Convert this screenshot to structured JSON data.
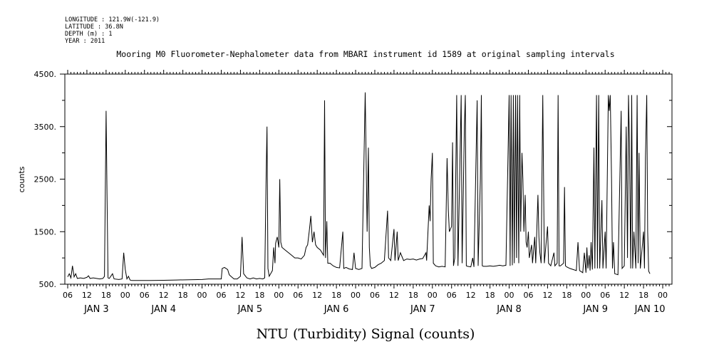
{
  "header": {
    "meta_lines": [
      "LONGITUDE : 121.9W(-121.9)",
      "LATITUDE : 36.8N",
      "DEPTH (m) : 1",
      "YEAR : 2011"
    ]
  },
  "chart_data": {
    "type": "line",
    "title": "Mooring M0 Fluorometer-Nephalometer data from MBARI instrument id 1589 at original sampling intervals",
    "xlabel": "NTU (Turbidity) Signal (counts)",
    "ylabel": "counts",
    "xlim_hours": [
      0,
      188
    ],
    "ylim": [
      500,
      4500
    ],
    "yticks": [
      500,
      1500,
      2500,
      3500,
      4500
    ],
    "ytick_labels": [
      "500.",
      "1500.",
      "2500.",
      "3500.",
      "4500."
    ],
    "xticks": [
      {
        "h": 0,
        "label": "06"
      },
      {
        "h": 6,
        "label": "12"
      },
      {
        "h": 12,
        "label": "18"
      },
      {
        "h": 18,
        "label": "00"
      },
      {
        "h": 24,
        "label": "06"
      },
      {
        "h": 30,
        "label": "12"
      },
      {
        "h": 36,
        "label": "18"
      },
      {
        "h": 42,
        "label": "00"
      },
      {
        "h": 48,
        "label": "06"
      },
      {
        "h": 54,
        "label": "12"
      },
      {
        "h": 60,
        "label": "18"
      },
      {
        "h": 66,
        "label": "00"
      },
      {
        "h": 72,
        "label": "06"
      },
      {
        "h": 78,
        "label": "12"
      },
      {
        "h": 84,
        "label": "18"
      },
      {
        "h": 90,
        "label": "00"
      },
      {
        "h": 96,
        "label": "06"
      },
      {
        "h": 102,
        "label": "12"
      },
      {
        "h": 108,
        "label": "18"
      },
      {
        "h": 114,
        "label": "00"
      },
      {
        "h": 120,
        "label": "06"
      },
      {
        "h": 126,
        "label": "12"
      },
      {
        "h": 132,
        "label": "18"
      },
      {
        "h": 138,
        "label": "00"
      },
      {
        "h": 144,
        "label": "06"
      },
      {
        "h": 150,
        "label": "12"
      },
      {
        "h": 156,
        "label": "18"
      },
      {
        "h": 162,
        "label": "00"
      },
      {
        "h": 168,
        "label": "06"
      },
      {
        "h": 174,
        "label": "12"
      },
      {
        "h": 180,
        "label": "18"
      },
      {
        "h": 186,
        "label": "00"
      }
    ],
    "day_labels": [
      {
        "h": 9,
        "label": "JAN  3"
      },
      {
        "h": 30,
        "label": "JAN  4"
      },
      {
        "h": 57,
        "label": "JAN  5"
      },
      {
        "h": 84,
        "label": "JAN  6"
      },
      {
        "h": 111,
        "label": "JAN  7"
      },
      {
        "h": 138,
        "label": "JAN  8"
      },
      {
        "h": 165,
        "label": "JAN  9"
      },
      {
        "h": 182,
        "label": "JAN 10"
      }
    ],
    "series": [
      {
        "points": [
          [
            0,
            640
          ],
          [
            0.5,
            700
          ],
          [
            1,
            620
          ],
          [
            1.5,
            850
          ],
          [
            2,
            640
          ],
          [
            2.5,
            700
          ],
          [
            3,
            610
          ],
          [
            4,
            620
          ],
          [
            5,
            610
          ],
          [
            6,
            630
          ],
          [
            6.5,
            660
          ],
          [
            7,
            610
          ],
          [
            8,
            620
          ],
          [
            9,
            610
          ],
          [
            10,
            600
          ],
          [
            11,
            610
          ],
          [
            11.5,
            650
          ],
          [
            12,
            3800
          ],
          [
            12.3,
            2200
          ],
          [
            12.6,
            620
          ],
          [
            13,
            610
          ],
          [
            14,
            700
          ],
          [
            14.5,
            600
          ],
          [
            16,
            590
          ],
          [
            17,
            600
          ],
          [
            17.5,
            1100
          ],
          [
            18,
            780
          ],
          [
            18.5,
            600
          ],
          [
            19,
            650
          ],
          [
            19.5,
            580
          ],
          [
            20,
            570
          ],
          [
            22,
            570
          ],
          [
            26,
            570
          ],
          [
            30,
            575
          ],
          [
            34,
            580
          ],
          [
            38,
            585
          ],
          [
            42,
            590
          ],
          [
            44,
            600
          ],
          [
            48,
            600
          ],
          [
            48.3,
            800
          ],
          [
            49,
            820
          ],
          [
            50,
            780
          ],
          [
            50.5,
            680
          ],
          [
            51,
            650
          ],
          [
            52,
            600
          ],
          [
            53,
            600
          ],
          [
            54,
            650
          ],
          [
            54.5,
            1400
          ],
          [
            55,
            700
          ],
          [
            56,
            620
          ],
          [
            57,
            600
          ],
          [
            58,
            620
          ],
          [
            59,
            600
          ],
          [
            60,
            610
          ],
          [
            61,
            600
          ],
          [
            61.6,
            620
          ],
          [
            62,
            2400
          ],
          [
            62.3,
            3500
          ],
          [
            62.6,
            800
          ],
          [
            63,
            650
          ],
          [
            64,
            760
          ],
          [
            64.4,
            1200
          ],
          [
            64.8,
            900
          ],
          [
            65,
            1280
          ],
          [
            65.5,
            1400
          ],
          [
            66,
            1200
          ],
          [
            66.3,
            2500
          ],
          [
            66.6,
            1300
          ],
          [
            67,
            1200
          ],
          [
            68,
            1150
          ],
          [
            69,
            1100
          ],
          [
            70,
            1050
          ],
          [
            71,
            1000
          ],
          [
            72,
            1000
          ],
          [
            73,
            980
          ],
          [
            74,
            1050
          ],
          [
            74.5,
            1200
          ],
          [
            75,
            1250
          ],
          [
            75.5,
            1500
          ],
          [
            76,
            1800
          ],
          [
            76.5,
            1300
          ],
          [
            77,
            1500
          ],
          [
            77.5,
            1250
          ],
          [
            78,
            1200
          ],
          [
            79,
            1150
          ],
          [
            80,
            1050
          ],
          [
            80.3,
            4000
          ],
          [
            80.6,
            1000
          ],
          [
            81,
            1700
          ],
          [
            81.3,
            900
          ],
          [
            82,
            900
          ],
          [
            83,
            850
          ],
          [
            84,
            820
          ],
          [
            85,
            810
          ],
          [
            86,
            1500
          ],
          [
            86.3,
            800
          ],
          [
            87,
            820
          ],
          [
            88,
            790
          ],
          [
            89,
            780
          ],
          [
            89.5,
            1100
          ],
          [
            90,
            800
          ],
          [
            91,
            780
          ],
          [
            92,
            800
          ],
          [
            93,
            4150
          ],
          [
            93.3,
            2800
          ],
          [
            93.6,
            1500
          ],
          [
            94,
            3100
          ],
          [
            94.3,
            1200
          ],
          [
            94.6,
            850
          ],
          [
            95,
            800
          ],
          [
            96,
            820
          ],
          [
            97,
            870
          ],
          [
            98,
            900
          ],
          [
            99,
            950
          ],
          [
            100,
            1900
          ],
          [
            100.3,
            1000
          ],
          [
            101,
            950
          ],
          [
            102,
            1550
          ],
          [
            102.3,
            950
          ],
          [
            103,
            1500
          ],
          [
            103.3,
            950
          ],
          [
            104,
            1100
          ],
          [
            105,
            950
          ],
          [
            106,
            980
          ],
          [
            107,
            970
          ],
          [
            108,
            980
          ],
          [
            109,
            960
          ],
          [
            110,
            980
          ],
          [
            111,
            990
          ],
          [
            112,
            1100
          ],
          [
            112.2,
            950
          ],
          [
            113,
            2000
          ],
          [
            113.3,
            1700
          ],
          [
            113.6,
            2500
          ],
          [
            114,
            3000
          ],
          [
            114.3,
            900
          ],
          [
            115,
            850
          ],
          [
            116,
            830
          ],
          [
            117,
            840
          ],
          [
            118,
            830
          ],
          [
            118.6,
            2900
          ],
          [
            119,
            1900
          ],
          [
            119.3,
            1500
          ],
          [
            120,
            1600
          ],
          [
            120.3,
            3200
          ],
          [
            120.6,
            850
          ],
          [
            121,
            1000
          ],
          [
            121.6,
            4100
          ],
          [
            122,
            850
          ],
          [
            123,
            4100
          ],
          [
            123.3,
            900
          ],
          [
            124,
            3500
          ],
          [
            124.3,
            4100
          ],
          [
            124.6,
            850
          ],
          [
            125,
            840
          ],
          [
            126,
            830
          ],
          [
            126.6,
            1000
          ],
          [
            127,
            830
          ],
          [
            128,
            4000
          ],
          [
            128.3,
            850
          ],
          [
            129,
            2500
          ],
          [
            129.3,
            4100
          ],
          [
            129.6,
            850
          ],
          [
            130,
            840
          ],
          [
            131,
            840
          ],
          [
            132,
            850
          ],
          [
            133,
            840
          ],
          [
            134,
            850
          ],
          [
            135,
            860
          ],
          [
            136,
            850
          ],
          [
            137,
            860
          ],
          [
            138,
            4100
          ],
          [
            138.3,
            850
          ],
          [
            138.6,
            4100
          ],
          [
            139,
            860
          ],
          [
            139.3,
            4100
          ],
          [
            139.6,
            900
          ],
          [
            140,
            4100
          ],
          [
            140.3,
            1000
          ],
          [
            140.6,
            4100
          ],
          [
            141,
            900
          ],
          [
            141.3,
            4100
          ],
          [
            141.6,
            1500
          ],
          [
            142,
            3000
          ],
          [
            142.3,
            2500
          ],
          [
            142.6,
            1500
          ],
          [
            143,
            2200
          ],
          [
            143.3,
            1300
          ],
          [
            143.6,
            1200
          ],
          [
            144,
            1500
          ],
          [
            144.3,
            1000
          ],
          [
            145,
            1250
          ],
          [
            145.3,
            900
          ],
          [
            146,
            1400
          ],
          [
            146.3,
            900
          ],
          [
            147,
            2200
          ],
          [
            147.3,
            1400
          ],
          [
            147.6,
            1100
          ],
          [
            148,
            900
          ],
          [
            148.5,
            4100
          ],
          [
            149,
            900
          ],
          [
            150,
            1600
          ],
          [
            150.3,
            900
          ],
          [
            151,
            850
          ],
          [
            152,
            1100
          ],
          [
            152.3,
            850
          ],
          [
            153,
            900
          ],
          [
            153.3,
            4100
          ],
          [
            153.6,
            850
          ],
          [
            154,
            850
          ],
          [
            155,
            900
          ],
          [
            155.3,
            2350
          ],
          [
            155.6,
            850
          ],
          [
            156,
            830
          ],
          [
            157,
            800
          ],
          [
            158,
            780
          ],
          [
            159,
            760
          ],
          [
            159.5,
            1300
          ],
          [
            160,
            760
          ],
          [
            161,
            720
          ],
          [
            161.5,
            1100
          ],
          [
            162,
            720
          ],
          [
            162.3,
            1200
          ],
          [
            162.6,
            800
          ],
          [
            163,
            1050
          ],
          [
            163.3,
            760
          ],
          [
            163.6,
            1300
          ],
          [
            164,
            780
          ],
          [
            164.5,
            3100
          ],
          [
            164.8,
            800
          ],
          [
            165.3,
            4100
          ],
          [
            165.6,
            800
          ],
          [
            166,
            4100
          ],
          [
            166.3,
            800
          ],
          [
            167,
            2100
          ],
          [
            167.3,
            800
          ],
          [
            168,
            1500
          ],
          [
            168.3,
            800
          ],
          [
            169,
            4100
          ],
          [
            169.3,
            3800
          ],
          [
            169.6,
            4100
          ],
          [
            170,
            2500
          ],
          [
            170.3,
            800
          ],
          [
            170.6,
            1300
          ],
          [
            171,
            700
          ],
          [
            172,
            680
          ],
          [
            173,
            3800
          ],
          [
            173.3,
            800
          ],
          [
            174,
            850
          ],
          [
            174.6,
            3500
          ],
          [
            175,
            1000
          ],
          [
            175.3,
            4100
          ],
          [
            175.6,
            3200
          ],
          [
            176,
            800
          ],
          [
            176.3,
            4100
          ],
          [
            176.6,
            800
          ],
          [
            177,
            1500
          ],
          [
            177.6,
            800
          ],
          [
            178,
            4100
          ],
          [
            178.3,
            900
          ],
          [
            178.6,
            3000
          ],
          [
            179,
            800
          ],
          [
            180,
            1500
          ],
          [
            180.3,
            800
          ],
          [
            180.6,
            2900
          ],
          [
            181,
            4100
          ],
          [
            181.3,
            1500
          ],
          [
            181.6,
            750
          ],
          [
            182,
            700
          ]
        ]
      }
    ]
  }
}
